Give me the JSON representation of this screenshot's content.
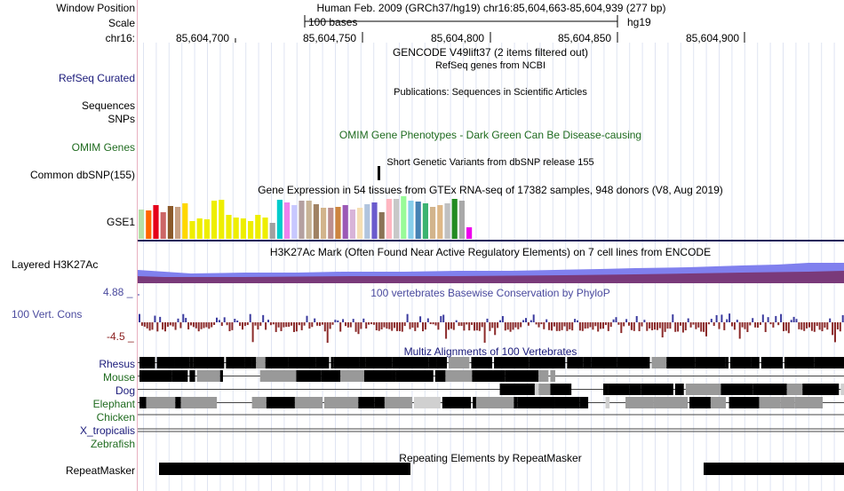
{
  "header": {
    "window_position_label": "Window Position",
    "window_position_value": "Human Feb. 2009 (GRCh37/hg19)   chr16:85,604,663-85,604,939 (277 bp)",
    "scale_label": "Scale",
    "scale_text": "100 bases",
    "scale_assembly": "hg19",
    "chrom_label": "chr16:",
    "ruler_ticks": [
      "85,604,700",
      "85,604,750",
      "85,604,800",
      "85,604,850",
      "85,604,900"
    ]
  },
  "tracks": {
    "gencode_title": "GENCODE V49lift37 (2 items filtered out)",
    "refseq_label": "RefSeq Curated",
    "refseq_title": "RefSeq genes from NCBI",
    "publications_title": "Publications: Sequences in Scientific Articles",
    "sequences_label": "Sequences",
    "snps_label": "SNPs",
    "omim_label": "OMIM Genes",
    "omim_title": "OMIM Gene Phenotypes - Dark Green Can Be Disease-causing",
    "dbsnp_title": "Short Genetic Variants from dbSNP release 155",
    "dbsnp_label": "Common dbSNP(155)",
    "gtex_title": "Gene Expression in 54 tissues from GTEx RNA-seq of 17382 samples, 948 donors (V8, Aug 2019)",
    "gtex_label": "GSE1",
    "h3k27ac_title": "H3K27Ac Mark (Often Found Near Active Regulatory Elements) on 7 cell lines from ENCODE",
    "h3k27ac_label": "Layered H3K27Ac",
    "cons_max": "4.88 _",
    "cons_title": "100 vertebrates Basewise Conservation by PhyloP",
    "cons_label": "100 Vert. Cons",
    "cons_min": "-4.5 _",
    "multiz_title": "Multiz Alignments of 100 Vertebrates",
    "species": [
      {
        "name": "Rhesus",
        "color": "#1a1a7a"
      },
      {
        "name": "Mouse",
        "color": "#1f6b1f"
      },
      {
        "name": "Dog",
        "color": "#1a1a7a"
      },
      {
        "name": "Elephant",
        "color": "#1f6b1f"
      },
      {
        "name": "Chicken",
        "color": "#1f6b1f"
      },
      {
        "name": "X_tropicalis",
        "color": "#1a1a7a"
      },
      {
        "name": "Zebrafish",
        "color": "#1f6b1f"
      }
    ],
    "repeat_title": "Repeating Elements by RepeatMasker",
    "repeat_label": "RepeatMasker"
  },
  "colors": {
    "gtex_bars": [
      "#b6e0a8",
      "#ff6600",
      "#e5001a",
      "#cc6666",
      "#8b5a2b",
      "#c8a082",
      "#ffd700",
      "#eeee00",
      "#eeee00",
      "#eeee00",
      "#eeee00",
      "#eeee00",
      "#eeee00",
      "#eeee00",
      "#eeee00",
      "#eeee00",
      "#eeee00",
      "#eeee00",
      "#a0a0a0",
      "#00cccc",
      "#ee82ee",
      "#c8c8ff",
      "#b4a0a0",
      "#c8b496",
      "#a08264",
      "#d2b48c",
      "#bc8f8f",
      "#cd853f",
      "#9b59b6",
      "#d8b4d8",
      "#f5deb3",
      "#b0c4de",
      "#6a5acd",
      "#8b7355",
      "#ffb6c1",
      "#c8c8c8",
      "#98fb98",
      "#87ceeb",
      "#4682b4",
      "#3cb371",
      "#d2b48c",
      "#deb887",
      "#c0c0c0",
      "#228b22",
      "#a9a9a9",
      "#ee00ee"
    ],
    "cons_pos": "#3a3a9e",
    "cons_neg": "#8b2a2a"
  }
}
